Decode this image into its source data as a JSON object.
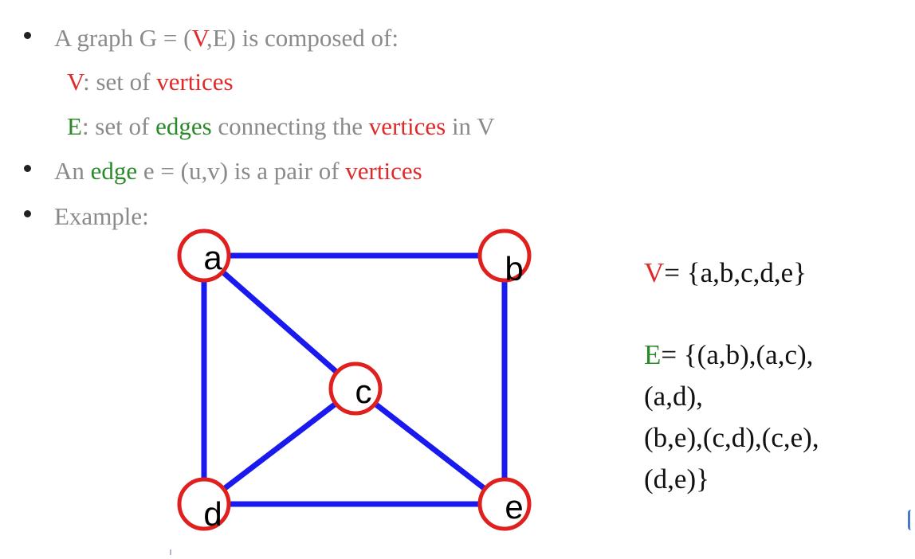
{
  "intro": {
    "line1": {
      "pre": "A graph G = (",
      "v": "V",
      "post": ",E) is composed of:"
    },
    "line2": {
      "v": "V",
      "mid": ": set of ",
      "vertices": "vertices"
    },
    "line3": {
      "e": "E",
      "mid": ": set of ",
      "edges": "edges",
      "mid2": " connecting the ",
      "vertices": "vertices",
      "post": " in V"
    },
    "line4": {
      "pre": "An ",
      "edge": "edge",
      "mid": " e = (u,v) is a pair of ",
      "vertices": "vertices"
    },
    "line5": {
      "text": "Example:"
    }
  },
  "graph": {
    "vertices": [
      {
        "id": "a",
        "label": "a"
      },
      {
        "id": "b",
        "label": "b"
      },
      {
        "id": "c",
        "label": "c"
      },
      {
        "id": "d",
        "label": "d"
      },
      {
        "id": "e",
        "label": "e"
      }
    ],
    "edges": [
      [
        "a",
        "b"
      ],
      [
        "a",
        "c"
      ],
      [
        "a",
        "d"
      ],
      [
        "b",
        "e"
      ],
      [
        "c",
        "d"
      ],
      [
        "c",
        "e"
      ],
      [
        "d",
        "e"
      ]
    ],
    "vertex_stroke_color": "#e0201e",
    "edge_color": "#1a1aee"
  },
  "sets": {
    "v_label": "V",
    "v_value": "= {a,b,c,d,e}",
    "e_label": "E",
    "e_line1": "= {(a,b),(a,c),",
    "e_line2": "(a,d),",
    "e_line3": "(b,e),(c,d),(c,e),",
    "e_line4": "(d,e)}"
  },
  "colors": {
    "red": "#e02a2a",
    "green": "#2a8a2a",
    "gray_text": "#8a8a8a"
  }
}
